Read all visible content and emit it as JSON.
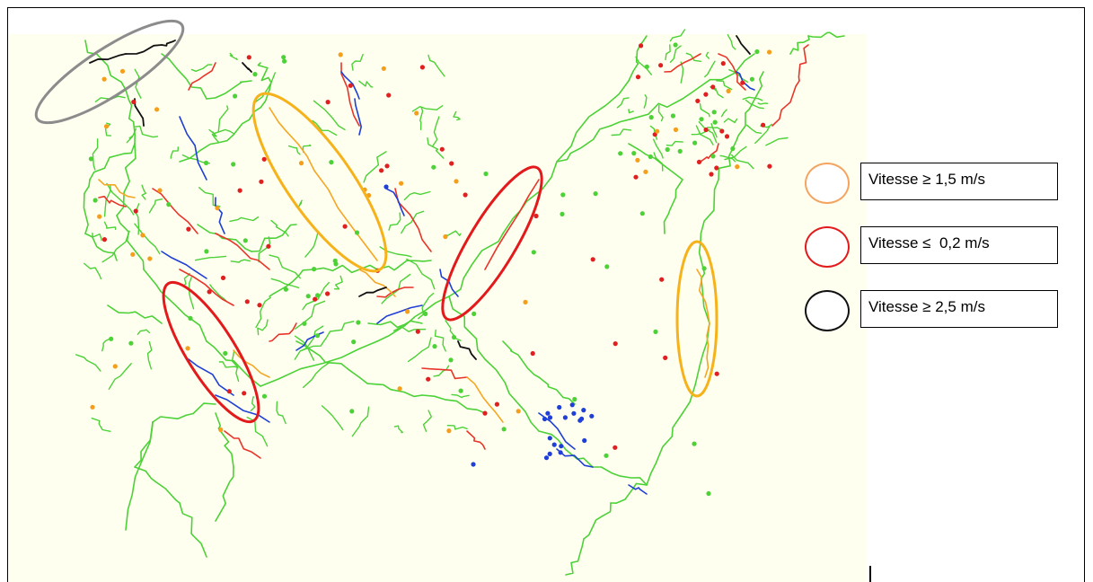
{
  "legend": {
    "items": [
      {
        "label": "Vitesse ≥ 1,5 m/s",
        "color": "#f4a460"
      },
      {
        "label": "Vitesse ≤  0,2 m/s",
        "color": "#e31a1c"
      },
      {
        "label": "Vitesse ≥ 2,5 m/s",
        "color": "#111111"
      }
    ]
  },
  "highlights": {
    "gray": "#8c8c8c",
    "orange": "#f5b21b",
    "red": "#e31a1c"
  },
  "network_colors": {
    "green": "#4cd137",
    "red": "#e8352a",
    "blue": "#1f3fd6",
    "orange": "#f5a623",
    "black": "#111111",
    "node_red": "#e02020",
    "node_orange": "#f59e1b",
    "node_blue": "#1f3fd6"
  }
}
